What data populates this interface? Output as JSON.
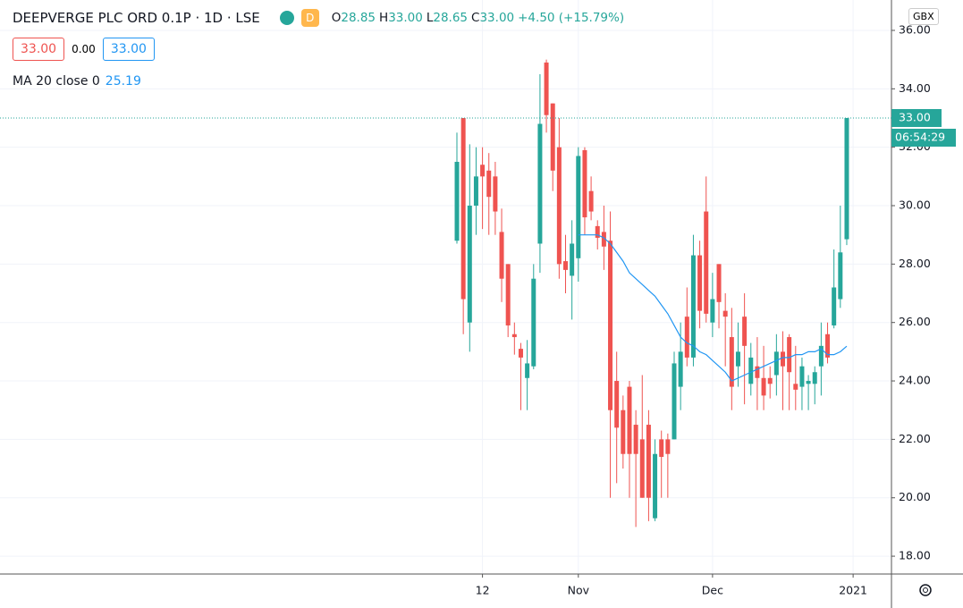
{
  "header": {
    "title": "DEEPVERGE PLC ORD 0.1P · 1D · LSE",
    "badge": "D",
    "ohlc": [
      {
        "k": "O",
        "v": "28.85"
      },
      {
        "k": "H",
        "v": "33.00"
      },
      {
        "k": "L",
        "v": "28.65"
      },
      {
        "k": "C",
        "v": "33.00"
      }
    ],
    "change": "+4.50 (+15.79%)",
    "boxes": [
      "33.00",
      "0.00",
      "33.00"
    ],
    "ma_label": "MA 20 close 0",
    "ma_value": "25.19",
    "currency": "GBX",
    "countdown": "06:54:29"
  },
  "chart_data": {
    "type": "candlestick",
    "up_color": "#26a69a",
    "down_color": "#ef5350",
    "grid": true,
    "open": [
      28.8,
      33,
      26,
      30,
      31.4,
      31.2,
      31,
      29.1,
      28,
      25.6,
      25.1,
      24.1,
      24.5,
      28.7,
      34.9,
      33.5,
      32,
      28.1,
      27.6,
      28.2,
      31.9,
      30.5,
      29.3,
      29.1,
      28.8,
      24,
      23,
      23.8,
      22.5,
      22,
      22.5,
      19.3,
      22,
      22,
      22,
      23.8,
      26.2,
      24.8,
      28.3,
      29.8,
      26,
      28,
      26.4,
      25.5,
      24.5,
      26.2,
      23.9,
      24.5,
      24.1,
      24.1,
      24.2,
      25,
      25.5,
      23.9,
      23.8,
      23.9,
      23.9,
      24.5,
      25.6,
      25.9,
      26.8,
      28.85
    ],
    "high": [
      32.5,
      33,
      32.1,
      32,
      32,
      31.8,
      31.5,
      29.9,
      28,
      26,
      25.3,
      25.4,
      28,
      34.5,
      35,
      33.5,
      33,
      29,
      29.5,
      32,
      32,
      31,
      29.5,
      30,
      29.8,
      25,
      23.5,
      24,
      23,
      24.2,
      23,
      22,
      22.3,
      22.2,
      25,
      26,
      27.2,
      29,
      28.8,
      31,
      27.7,
      28,
      27,
      26.5,
      26,
      27,
      25.3,
      25.5,
      25.2,
      24.5,
      25.6,
      25.7,
      25.6,
      25.2,
      24.8,
      24.2,
      24.5,
      26,
      26,
      28.5,
      30,
      33
    ],
    "low": [
      28.7,
      25.6,
      25,
      29,
      29.2,
      29,
      29,
      26.7,
      25.5,
      24.9,
      23,
      23,
      24.4,
      27.7,
      32.5,
      30.5,
      27.5,
      27,
      26.1,
      27.4,
      29,
      29.5,
      28.5,
      27.8,
      20,
      20.5,
      21,
      20,
      19,
      20,
      19.2,
      19.2,
      20,
      20,
      22,
      23,
      24.5,
      24.5,
      25.8,
      26,
      25.5,
      25.8,
      24.5,
      23,
      23.8,
      23.2,
      23.5,
      23,
      23,
      23.4,
      23.5,
      23,
      23,
      23,
      23,
      23,
      23.2,
      23.5,
      24.6,
      25.8,
      26.5,
      28.65
    ],
    "close": [
      31.5,
      26.8,
      30,
      31,
      31,
      30.3,
      29.8,
      27.5,
      25.9,
      25.5,
      24.8,
      24.6,
      27.5,
      32.8,
      33.1,
      31.2,
      28,
      27.8,
      28.7,
      31.7,
      29.6,
      29.8,
      28.9,
      28.6,
      23,
      22.4,
      21.5,
      21.5,
      21.5,
      20,
      20,
      21.5,
      21.4,
      21.5,
      24.6,
      25,
      24.8,
      28.3,
      26.4,
      26.3,
      26.8,
      26.7,
      26.2,
      23.8,
      25,
      25.2,
      24.8,
      24.1,
      23.5,
      23.9,
      25,
      24.5,
      24.3,
      23.7,
      24.5,
      24,
      24.3,
      25.2,
      24.8,
      27.2,
      28.4,
      33
    ],
    "ma": {
      "name": "MA 20",
      "color": "#2196f3",
      "values": [
        null,
        null,
        null,
        null,
        null,
        null,
        null,
        null,
        null,
        null,
        null,
        null,
        null,
        null,
        null,
        null,
        null,
        null,
        null,
        29.0,
        29.0,
        29.0,
        29.0,
        28.9,
        28.7,
        28.4,
        28.1,
        27.7,
        27.5,
        27.3,
        27.1,
        26.9,
        26.6,
        26.3,
        25.9,
        25.5,
        25.3,
        25.2,
        25.0,
        24.9,
        24.7,
        24.5,
        24.3,
        24.0,
        24.1,
        24.2,
        24.3,
        24.4,
        24.5,
        24.6,
        24.7,
        24.8,
        24.8,
        24.9,
        24.9,
        25.0,
        25.0,
        25.1,
        24.9,
        24.9,
        25.0,
        25.19
      ]
    },
    "last_price": {
      "value": 33,
      "label": "33.00"
    },
    "xlim": [
      -71.5,
      68
    ],
    "xticks": [
      {
        "value": 4,
        "label": "12"
      },
      {
        "value": 19,
        "label": "Nov"
      },
      {
        "value": 40,
        "label": "Dec"
      },
      {
        "value": 62,
        "label": "2021"
      }
    ],
    "ylim": [
      17.39,
      37.04
    ],
    "yticks": [
      {
        "value": 18,
        "label": "18.00"
      },
      {
        "value": 20,
        "label": "20.00"
      },
      {
        "value": 22,
        "label": "22.00"
      },
      {
        "value": 24,
        "label": "24.00"
      },
      {
        "value": 26,
        "label": "26.00"
      },
      {
        "value": 28,
        "label": "28.00"
      },
      {
        "value": 30,
        "label": "30.00"
      },
      {
        "value": 32,
        "label": "32.00"
      },
      {
        "value": 34,
        "label": "34.00"
      },
      {
        "value": 36,
        "label": "36.00"
      }
    ]
  }
}
